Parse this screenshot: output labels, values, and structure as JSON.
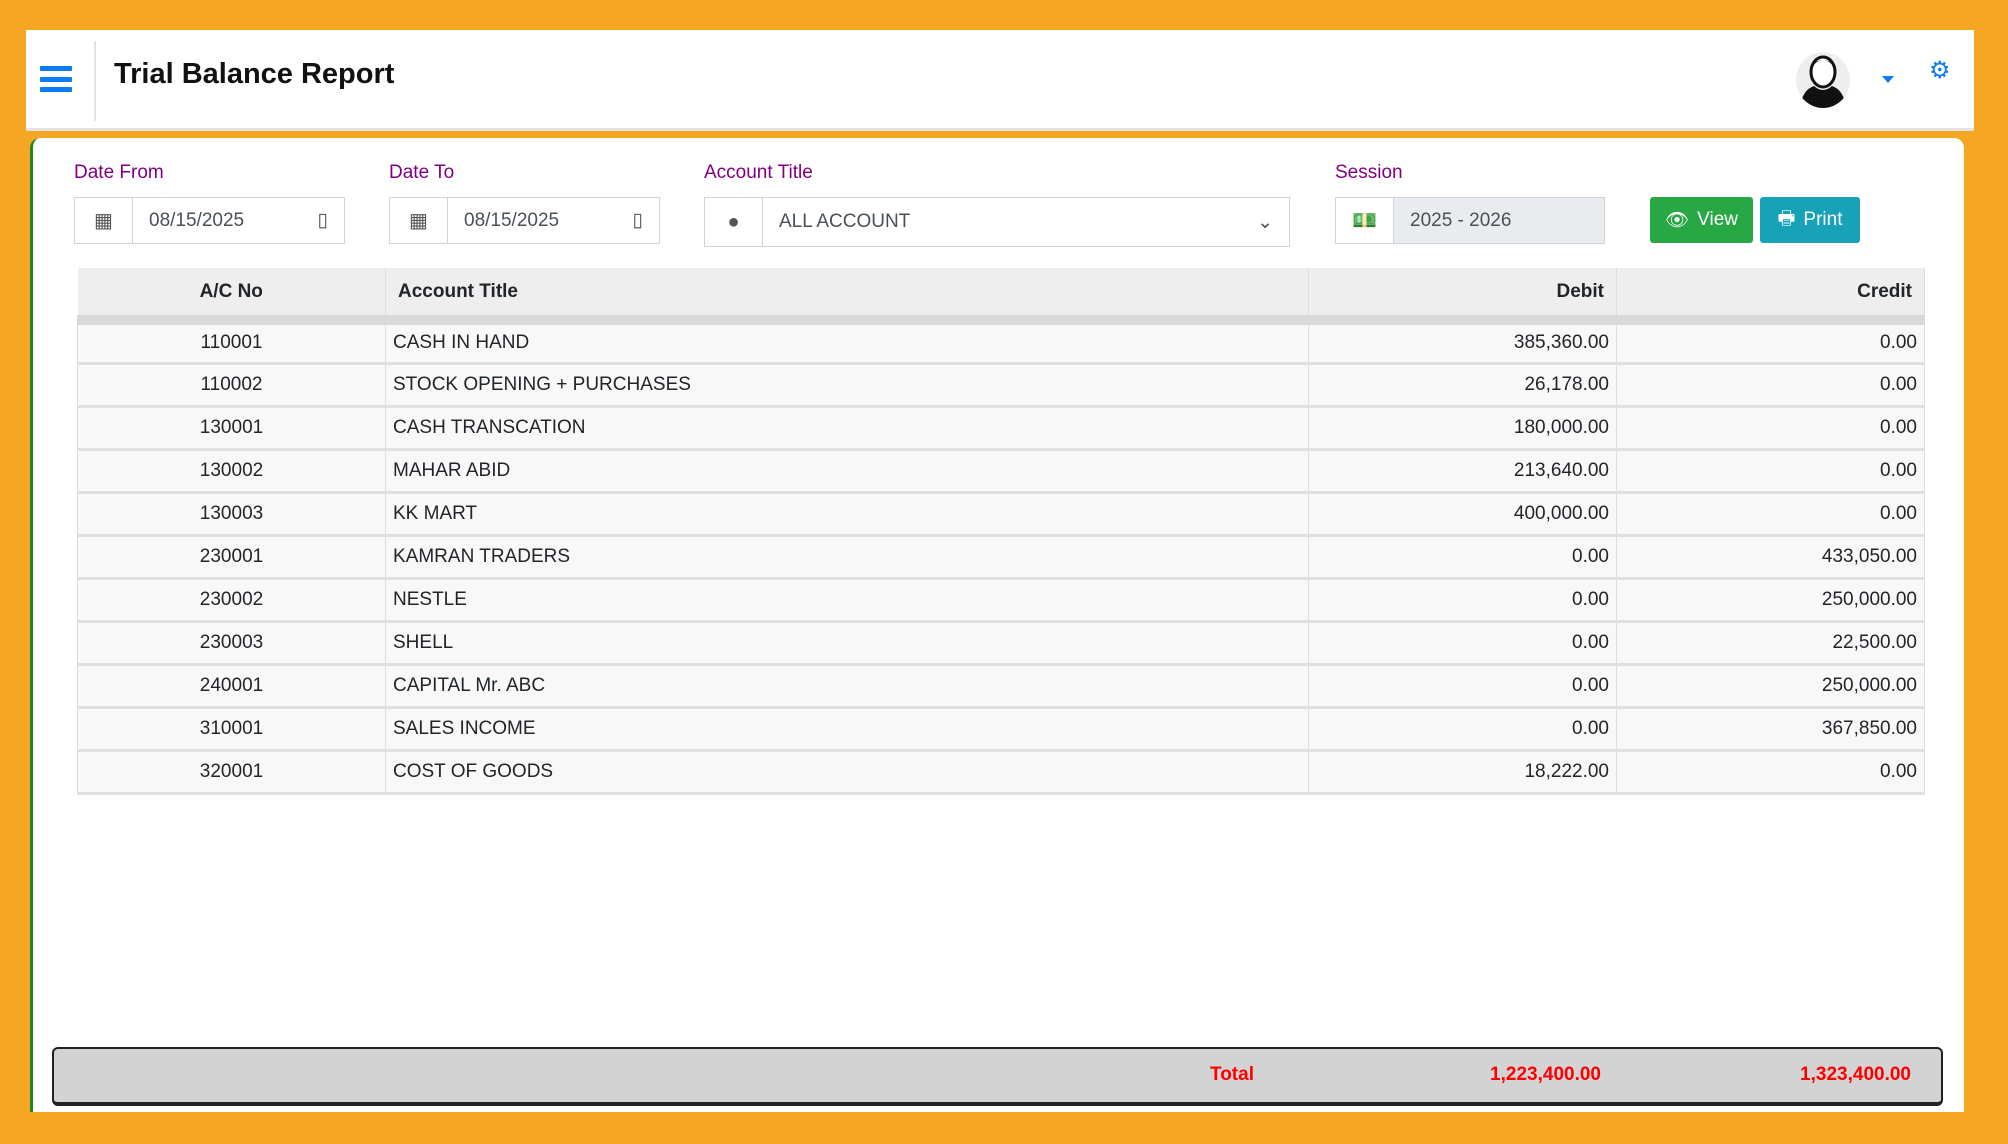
{
  "header": {
    "title": "Trial Balance Report"
  },
  "filters": {
    "date_from": {
      "label": "Date From",
      "value": "08/15/2025"
    },
    "date_to": {
      "label": "Date To",
      "value": "08/15/2025"
    },
    "account_title": {
      "label": "Account Title",
      "value": "ALL ACCOUNT"
    },
    "session": {
      "label": "Session",
      "value": "2025 - 2026"
    },
    "view_label": "View",
    "print_label": "Print"
  },
  "table": {
    "headers": [
      "A/C No",
      "Account Title",
      "Debit",
      "Credit"
    ],
    "rows": [
      [
        "110001",
        "CASH IN HAND",
        "385,360.00",
        "0.00"
      ],
      [
        "110002",
        "STOCK OPENING + PURCHASES",
        "26,178.00",
        "0.00"
      ],
      [
        "130001",
        "CASH TRANSCATION",
        "180,000.00",
        "0.00"
      ],
      [
        "130002",
        "MAHAR ABID",
        "213,640.00",
        "0.00"
      ],
      [
        "130003",
        "KK MART",
        "400,000.00",
        "0.00"
      ],
      [
        "230001",
        "KAMRAN TRADERS",
        "0.00",
        "433,050.00"
      ],
      [
        "230002",
        "NESTLE",
        "0.00",
        "250,000.00"
      ],
      [
        "230003",
        "SHELL",
        "0.00",
        "22,500.00"
      ],
      [
        "240001",
        "CAPITAL Mr. ABC",
        "0.00",
        "250,000.00"
      ],
      [
        "310001",
        "SALES INCOME",
        "0.00",
        "367,850.00"
      ],
      [
        "320001",
        "COST OF GOODS",
        "18,222.00",
        "0.00"
      ]
    ]
  },
  "totals": {
    "label": "Total",
    "debit": "1,223,400.00",
    "credit": "1,323,400.00"
  },
  "colors": {
    "accent": "#0d7bf2",
    "view": "#28a745",
    "print": "#17a2b8",
    "label": "#800080",
    "total": "#ff0000",
    "frame": "#F5A623"
  }
}
